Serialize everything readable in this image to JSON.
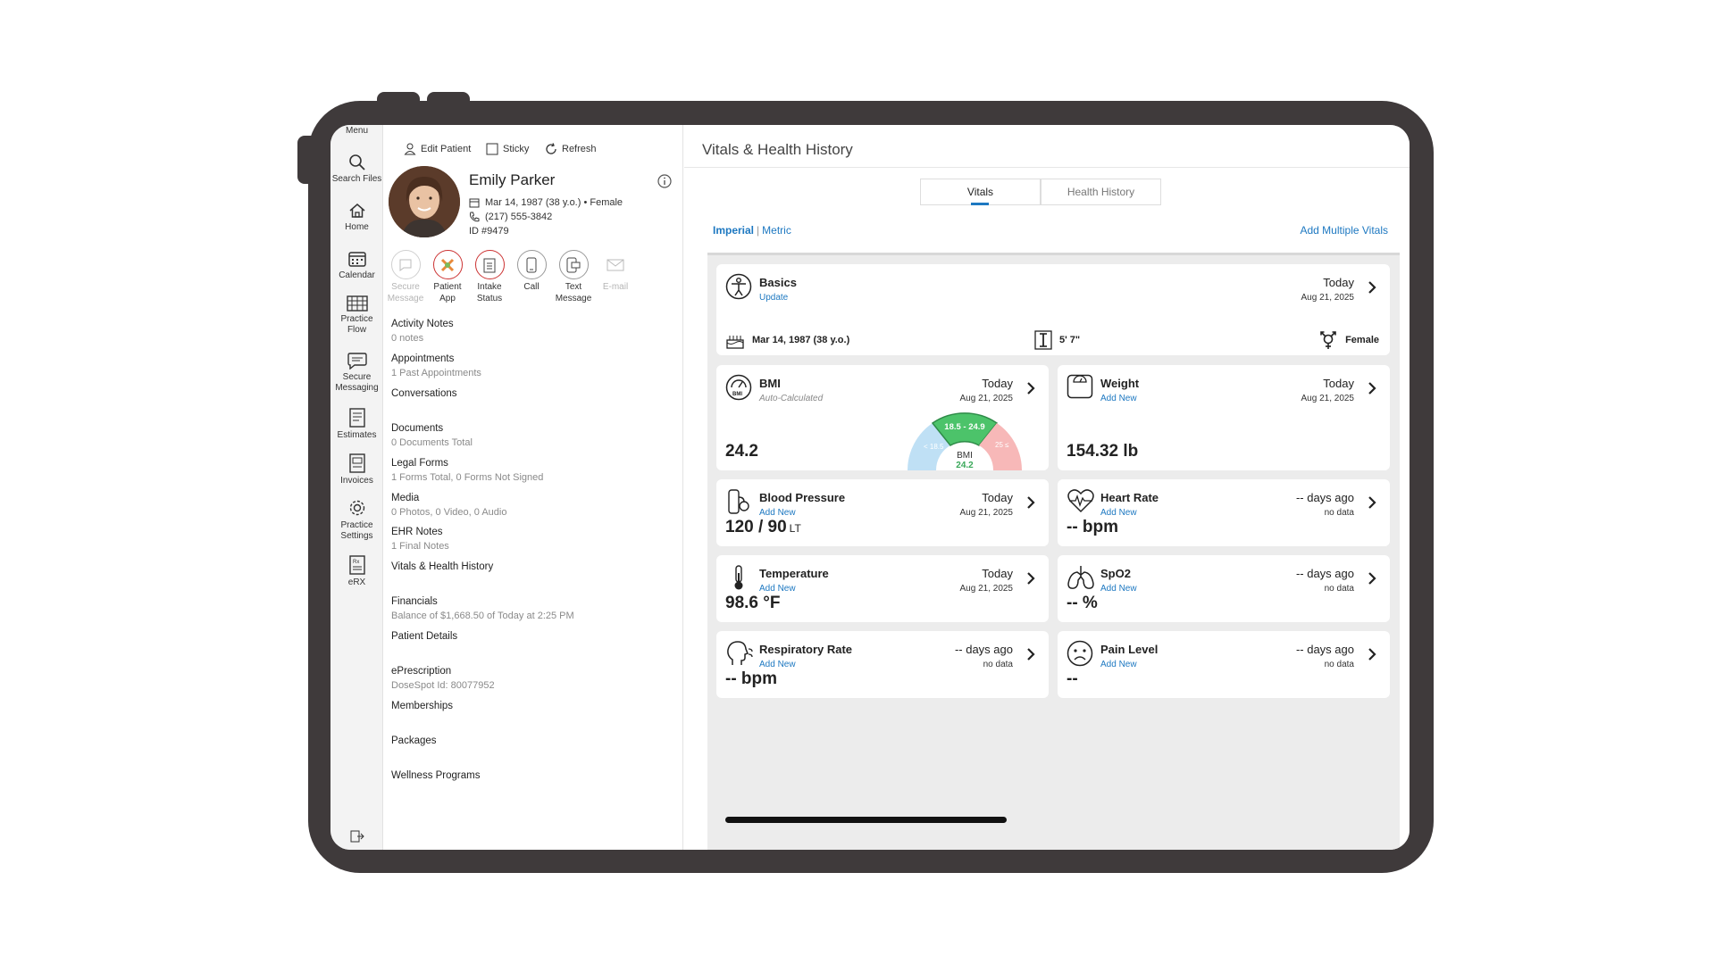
{
  "rail": {
    "menu": "Menu",
    "items": [
      {
        "label1": "Search Files",
        "label2": "",
        "icon": "search-icon"
      },
      {
        "label1": "Home",
        "label2": "",
        "icon": "home-icon"
      },
      {
        "label1": "Calendar",
        "label2": "",
        "icon": "calendar-icon"
      },
      {
        "label1": "Practice",
        "label2": "Flow",
        "icon": "practice-flow-icon"
      },
      {
        "label1": "Secure",
        "label2": "Messaging",
        "icon": "message-icon"
      },
      {
        "label1": "Estimates",
        "label2": "",
        "icon": "estimates-icon"
      },
      {
        "label1": "Invoices",
        "label2": "",
        "icon": "invoices-icon"
      },
      {
        "label1": "Practice",
        "label2": "Settings",
        "icon": "gear-icon"
      },
      {
        "label1": "eRX",
        "label2": "",
        "icon": "erx-icon"
      }
    ]
  },
  "toolbar": {
    "edit": "Edit Patient",
    "sticky": "Sticky",
    "refresh": "Refresh"
  },
  "patient": {
    "name": "Emily Parker",
    "dob": "Mar 14, 1987 (38 y.o.) • Female",
    "phone": "(217) 555-3842",
    "id": "ID  #9479"
  },
  "actions": [
    {
      "l1": "Secure",
      "l2": "Message"
    },
    {
      "l1": "Patient",
      "l2": "App"
    },
    {
      "l1": "Intake",
      "l2": "Status"
    },
    {
      "l1": "Call",
      "l2": ""
    },
    {
      "l1": "Text",
      "l2": "Message"
    },
    {
      "l1": "E-mail",
      "l2": ""
    }
  ],
  "sections": [
    {
      "title": "Activity Notes",
      "sub": "0 notes"
    },
    {
      "title": "Appointments",
      "sub": "1 Past Appointments"
    },
    {
      "title": "Conversations",
      "sub": ""
    },
    {
      "title": "Documents",
      "sub": "0 Documents Total"
    },
    {
      "title": "Legal Forms",
      "sub": "1 Forms Total, 0 Forms Not Signed"
    },
    {
      "title": "Media",
      "sub": "0 Photos, 0 Video, 0 Audio"
    },
    {
      "title": "EHR Notes",
      "sub": "1 Final Notes"
    },
    {
      "title": "Vitals & Health History",
      "sub": ""
    },
    {
      "title": "Financials",
      "sub": "Balance of $1,668.50 of Today at 2:25 PM"
    },
    {
      "title": "Patient Details",
      "sub": ""
    },
    {
      "title": "ePrescription",
      "sub": "DoseSpot Id: 80077952"
    },
    {
      "title": "Memberships",
      "sub": ""
    },
    {
      "title": "Packages",
      "sub": ""
    },
    {
      "title": "Wellness Programs",
      "sub": ""
    }
  ],
  "main": {
    "title": "Vitals & Health History",
    "tabs": [
      "Vitals",
      "Health History"
    ],
    "units": {
      "imperial": "Imperial",
      "sep": "|",
      "metric": "Metric"
    },
    "add_multiple": "Add Multiple Vitals"
  },
  "basics": {
    "title": "Basics",
    "link": "Update",
    "when": "Today",
    "date": "Aug 21, 2025",
    "dob": "Mar 14, 1987 (38 y.o.)",
    "height": "5' 7\"",
    "sex": "Female"
  },
  "bmi": {
    "title": "BMI",
    "sub": "Auto-Calculated",
    "when": "Today",
    "date": "Aug 21, 2025",
    "value": "24.2",
    "gauge": {
      "low": "< 18.5",
      "normal": "18.5 - 24.9",
      "high": "25 ≤",
      "label": "BMI",
      "value": "24.2"
    }
  },
  "vitals": {
    "weight": {
      "title": "Weight",
      "link": "Add New",
      "when": "Today",
      "date": "Aug 21, 2025",
      "value": "154.32 lb",
      "unit": ""
    },
    "bp": {
      "title": "Blood Pressure",
      "link": "Add New",
      "when": "Today",
      "date": "Aug 21, 2025",
      "value": "120 / 90",
      "unit": "LT"
    },
    "hr": {
      "title": "Heart Rate",
      "link": "Add New",
      "when": "-- days ago",
      "date": "no data",
      "value": "-- bpm",
      "unit": ""
    },
    "temp": {
      "title": "Temperature",
      "link": "Add New",
      "when": "Today",
      "date": "Aug 21, 2025",
      "value": "98.6 °F",
      "unit": ""
    },
    "spo2": {
      "title": "SpO2",
      "link": "Add New",
      "when": "-- days ago",
      "date": "no data",
      "value": "-- %",
      "unit": ""
    },
    "rr": {
      "title": "Respiratory Rate",
      "link": "Add New",
      "when": "-- days ago",
      "date": "no data",
      "value": "-- bpm",
      "unit": ""
    },
    "pain": {
      "title": "Pain Level",
      "link": "Add New",
      "when": "-- days ago",
      "date": "no data",
      "value": "--",
      "unit": ""
    }
  },
  "colors": {
    "accent": "#1d78c1",
    "frame": "#3f3a3b",
    "gauge_low": "#bfe0f5",
    "gauge_normal": "#4cc36a",
    "gauge_high": "#f7b8b8"
  }
}
